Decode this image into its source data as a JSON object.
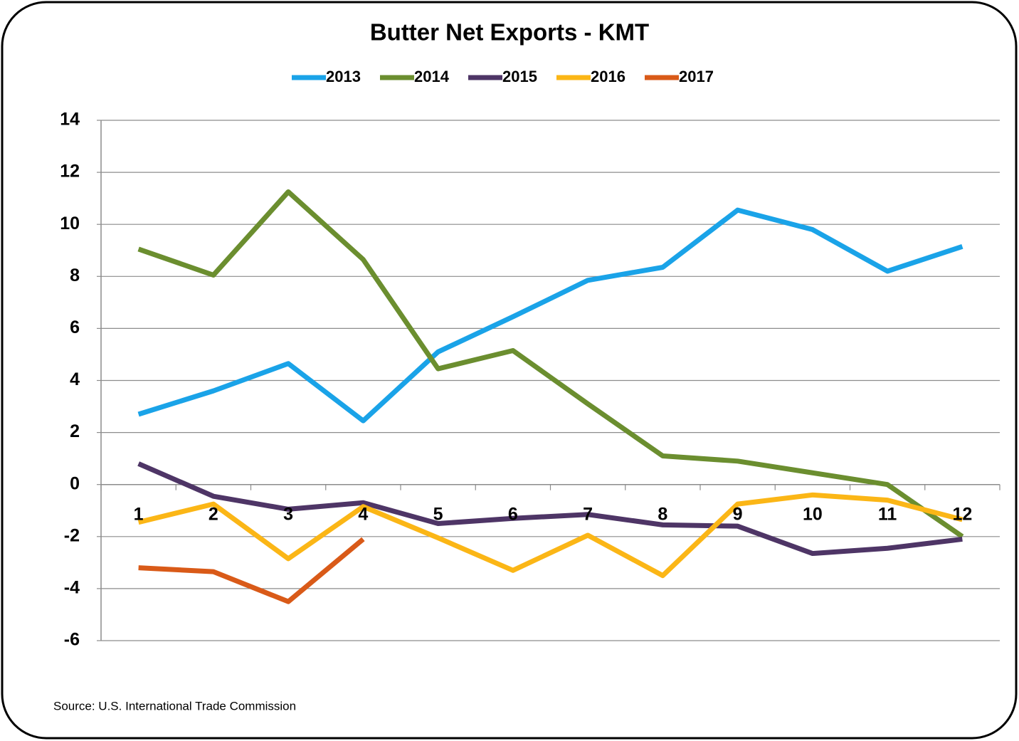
{
  "chart_data": {
    "type": "line",
    "title": "Butter Net Exports - KMT",
    "categories": [
      "1",
      "2",
      "3",
      "4",
      "5",
      "6",
      "7",
      "8",
      "9",
      "10",
      "11",
      "12"
    ],
    "series": [
      {
        "name": "2013",
        "color": "#1aa3e8",
        "values": [
          2.7,
          3.6,
          4.65,
          2.45,
          5.1,
          6.45,
          7.85,
          8.35,
          10.55,
          9.8,
          8.2,
          9.15
        ]
      },
      {
        "name": "2014",
        "color": "#6b8e2f",
        "values": [
          9.05,
          8.05,
          11.25,
          8.65,
          4.45,
          5.15,
          3.1,
          1.1,
          0.9,
          0.45,
          0.0,
          -2.0
        ]
      },
      {
        "name": "2015",
        "color": "#4e3566",
        "values": [
          0.8,
          -0.45,
          -0.95,
          -0.7,
          -1.5,
          -1.3,
          -1.15,
          -1.55,
          -1.6,
          -2.65,
          -2.45,
          -2.1
        ]
      },
      {
        "name": "2016",
        "color": "#fbb616",
        "values": [
          -1.45,
          -0.75,
          -2.85,
          -0.85,
          -2.05,
          -3.3,
          -1.95,
          -3.5,
          -0.75,
          -0.4,
          -0.6,
          -1.35
        ]
      },
      {
        "name": "2017",
        "color": "#d95a18",
        "values": [
          -3.2,
          -3.35,
          -4.5,
          -2.1,
          null,
          null,
          null,
          null,
          null,
          null,
          null,
          null
        ]
      }
    ],
    "ylim": [
      -6,
      14
    ],
    "yticks": [
      -6,
      -4,
      -2,
      0,
      2,
      4,
      6,
      8,
      10,
      12,
      14
    ],
    "grid": true,
    "legend": "top",
    "source": "Source: U.S. International Trade Commission"
  }
}
